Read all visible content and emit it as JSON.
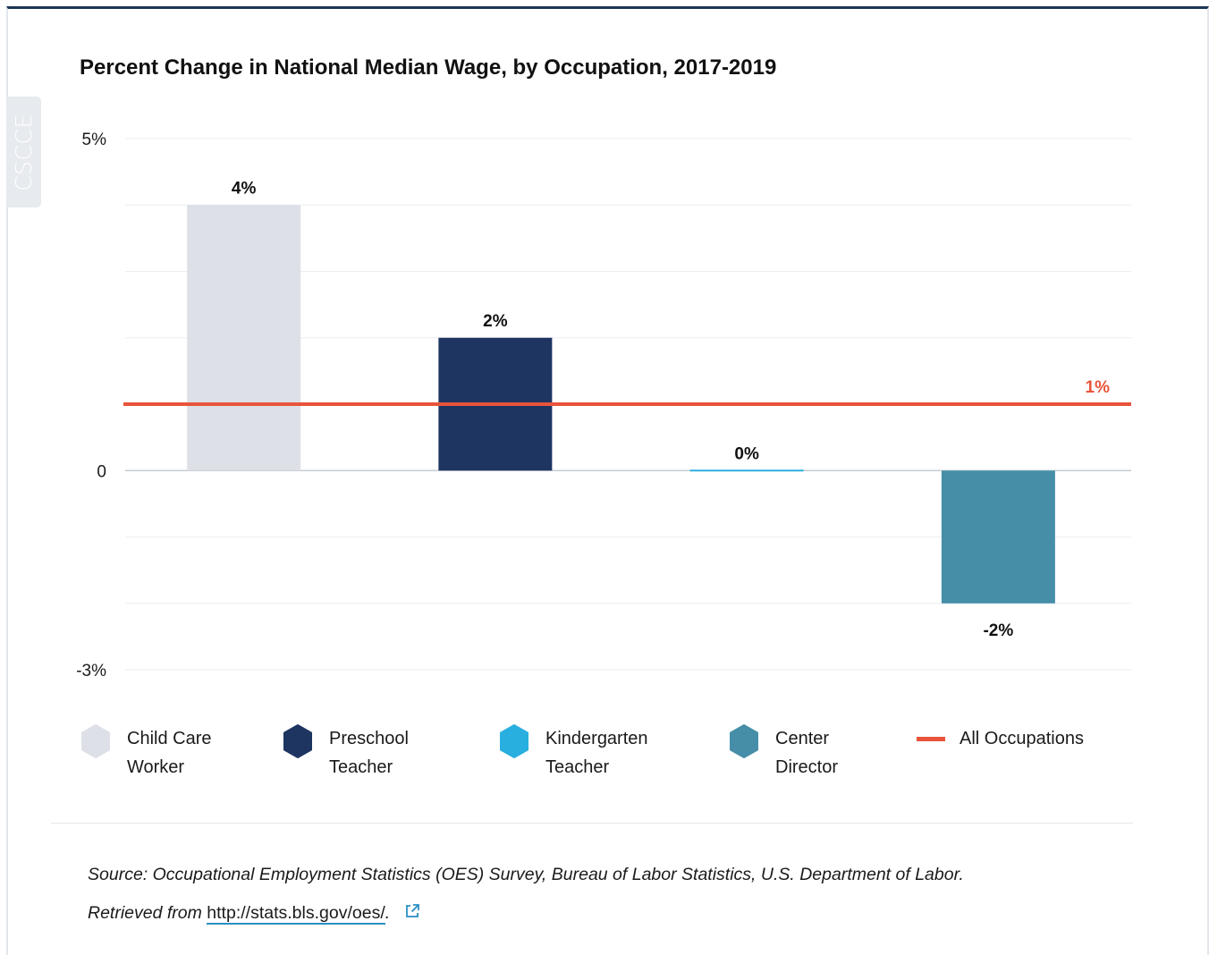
{
  "watermark": "CSCCE",
  "chart_data": {
    "type": "bar",
    "title": "Percent Change in National Median Wage, by Occupation, 2017-2019",
    "categories": [
      "Child Care Worker",
      "Preschool Teacher",
      "Kindergarten Teacher",
      "Center Director"
    ],
    "values": [
      4,
      2,
      0,
      -2
    ],
    "data_labels": [
      "4%",
      "2%",
      "0%",
      "-2%"
    ],
    "colors": [
      "#dde0e7",
      "#1d3560",
      "#29aee0",
      "#468ea8"
    ],
    "reference_line": {
      "name": "All Occupations",
      "value": 1,
      "label": "1%",
      "color": "#e8543b"
    },
    "ylim": [
      -3,
      5
    ],
    "y_ticks": [
      {
        "value": 5,
        "label": "5%"
      },
      {
        "value": 0,
        "label": "0"
      },
      {
        "value": -3,
        "label": "-3%"
      }
    ],
    "gridlines": [
      5,
      4,
      3,
      2,
      1,
      0,
      -1,
      -2,
      -3
    ],
    "grid": true,
    "xlabel": "",
    "ylabel": "",
    "legend_position": "bottom"
  },
  "legend": [
    {
      "label_line1": "Child Care",
      "label_line2": "Worker",
      "color": "#dde0e7"
    },
    {
      "label_line1": "Preschool",
      "label_line2": "Teacher",
      "color": "#1d3560"
    },
    {
      "label_line1": "Kindergarten",
      "label_line2": "Teacher",
      "color": "#29aee0"
    },
    {
      "label_line1": "Center",
      "label_line2": "Director",
      "color": "#468ea8"
    },
    {
      "label_line1": "All Occupations",
      "label_line2": "",
      "color": "#e8543b"
    }
  ],
  "source": {
    "prefix": "Source: Occupational Employment Statistics (OES) Survey, Bureau of Labor Statistics, U.S. Department of Labor.",
    "retrieved": "Retrieved from",
    "link_text": "http://stats.bls.gov/oes/",
    "suffix": "."
  }
}
